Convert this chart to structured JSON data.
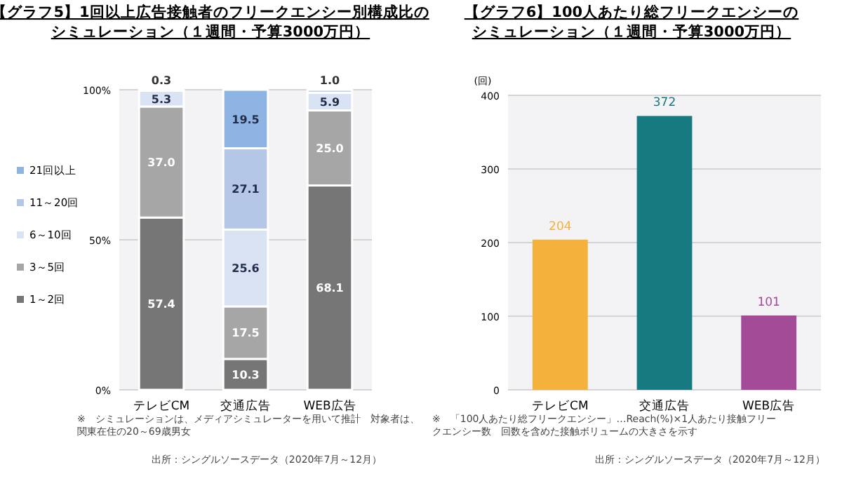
{
  "chart_data": [
    {
      "type": "bar",
      "title": "【グラフ5】1回以上広告接触者のフリークエンシー別構成比のシミュレーション（１週間・予算3000万円）",
      "categories": [
        "テレビCM",
        "交通広告",
        "WEB広告"
      ],
      "stacked": true,
      "ylim": [
        0,
        100
      ],
      "yticks": [
        {
          "value": 0,
          "label": "0%"
        },
        {
          "value": 50,
          "label": "50%"
        },
        {
          "value": 100,
          "label": "100%"
        }
      ],
      "grid": "y",
      "legend": "left",
      "series": [
        {
          "name": "1～2回",
          "color": "#767676",
          "values": [
            57.4,
            10.3,
            68.1
          ],
          "value_labels": [
            "57.4",
            "10.3",
            "68.1"
          ]
        },
        {
          "name": "3～5回",
          "color": "#a6a6a6",
          "values": [
            37.0,
            17.5,
            25.0
          ],
          "value_labels": [
            "37.0",
            "17.5",
            "25.0"
          ]
        },
        {
          "name": "6～10回",
          "color": "#dae3f3",
          "values": [
            5.3,
            25.6,
            5.9
          ],
          "value_labels": [
            "5.3",
            "25.6",
            "5.9"
          ]
        },
        {
          "name": "11～20回",
          "color": "#b4c7e7",
          "values": [
            0.3,
            27.1,
            1.0
          ],
          "value_labels": [
            "0.3",
            "27.1",
            "1.0"
          ]
        },
        {
          "name": "21回以上",
          "color": "#8eb4e3",
          "values": [
            0,
            19.5,
            0
          ],
          "value_labels": [
            null,
            "19.5",
            null
          ]
        }
      ],
      "annotations": [
        "※　シミュレーションは、メディアシミュレーターを用いて推計　対象者は、関東在住の20～69歳男女",
        "出所：シングルソースデータ（2020年7月～12月）"
      ]
    },
    {
      "type": "bar",
      "title": "【グラフ6】100人あたり総フリークエンシーのシミュレーション（１週間・予算3000万円）",
      "ylabel": "(回)",
      "categories": [
        "テレビCM",
        "交通広告",
        "WEB広告"
      ],
      "values": [
        204,
        372,
        101
      ],
      "colors": [
        "#f4b13c",
        "#167a80",
        "#a34b96"
      ],
      "data_labels": true,
      "ylim": [
        0,
        400
      ],
      "yticks": [
        0,
        100,
        200,
        300,
        400
      ],
      "grid": "y",
      "annotations": [
        "※　「100人あたり総フリークエンシー」…Reach(%)×1人あたり接触フリークエンシー数　回数を含めた接触ボリュームの大きさを示す",
        "出所：シングルソースデータ（2020年7月～12月）"
      ]
    }
  ]
}
